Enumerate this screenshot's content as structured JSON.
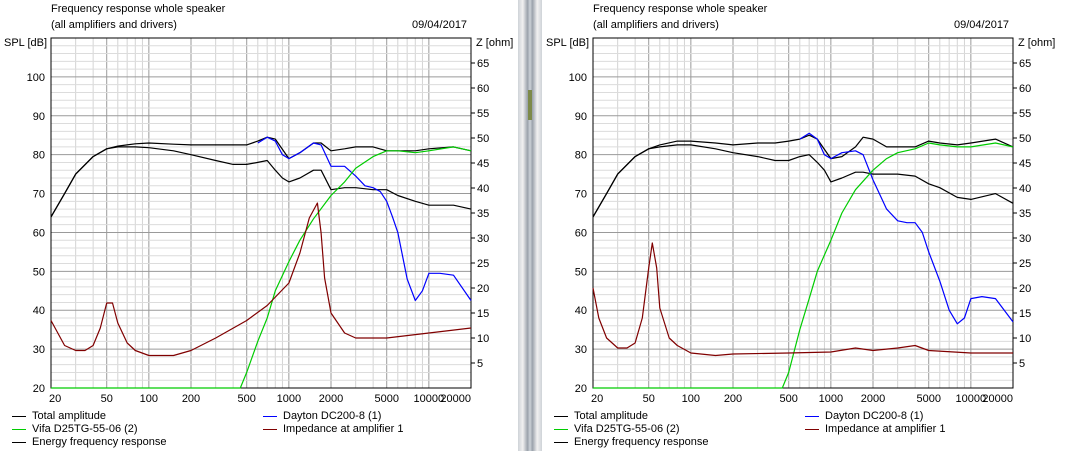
{
  "header": {
    "title": "Frequency response whole speaker",
    "subtitle": "(all amplifiers and drivers)",
    "date": "09/04/2017",
    "y_left_label": "SPL [dB]",
    "y_right_label": "Z [ohm]"
  },
  "legend": [
    {
      "label": "Total amplitude",
      "color": "#000000"
    },
    {
      "label": "Vifa D25TG-55-06 (2)",
      "color": "#00cc00"
    },
    {
      "label": "Energy frequency response",
      "color": "#000000"
    },
    {
      "label": "Dayton DC200-8 (1)",
      "color": "#0000ff"
    },
    {
      "label": "Impedance at amplifier 1",
      "color": "#800000"
    }
  ],
  "chart_data": [
    {
      "type": "line",
      "title": "Frequency response whole speaker",
      "subtitle": "(all amplifiers and drivers)",
      "xlabel": "",
      "ylabel": "SPL [dB]",
      "y2label": "Z [ohm]",
      "x_scale": "log",
      "xlim": [
        20,
        20000
      ],
      "ylim": [
        20,
        110
      ],
      "y2lim": [
        0,
        70
      ],
      "x_ticks": [
        20,
        50,
        100,
        200,
        500,
        1000,
        2000,
        5000,
        10000,
        20000
      ],
      "x_tick_labels": [
        "20",
        "50",
        "100",
        "200",
        "500",
        "1000",
        "2000",
        "5000",
        "10000",
        "20000"
      ],
      "y_ticks": [
        20,
        30,
        40,
        50,
        60,
        70,
        80,
        90,
        100
      ],
      "y2_ticks": [
        5,
        10,
        15,
        20,
        25,
        30,
        35,
        40,
        45,
        50,
        55,
        60,
        65
      ],
      "grid": true,
      "series": [
        {
          "name": "Total amplitude",
          "axis": "left",
          "color": "#000000",
          "x": [
            20,
            25,
            30,
            40,
            50,
            60,
            80,
            100,
            150,
            200,
            300,
            400,
            500,
            600,
            700,
            800,
            1000,
            1200,
            1500,
            1700,
            2000,
            2500,
            3000,
            4000,
            5000,
            6000,
            8000,
            10000,
            15000,
            20000
          ],
          "y": [
            64,
            70,
            75,
            79.5,
            81.5,
            82.2,
            82.8,
            83,
            82.7,
            82.5,
            82.5,
            82.5,
            82.5,
            83.5,
            84.5,
            84,
            79,
            80.5,
            83,
            83,
            81,
            81.5,
            82,
            82,
            81,
            81,
            81,
            81.5,
            82,
            81
          ]
        },
        {
          "name": "Energy frequency response",
          "axis": "left",
          "color": "#000000",
          "x": [
            20,
            25,
            30,
            40,
            50,
            60,
            80,
            100,
            150,
            200,
            300,
            400,
            500,
            600,
            700,
            800,
            900,
            1000,
            1200,
            1500,
            1700,
            2000,
            2500,
            3000,
            4000,
            5000,
            6000,
            8000,
            10000,
            15000,
            20000
          ],
          "y": [
            64,
            70,
            75,
            79.5,
            81.5,
            82,
            82,
            81.8,
            81,
            80,
            78.5,
            77.5,
            77.5,
            78,
            78.5,
            76,
            74,
            73,
            74,
            76,
            76,
            71,
            71.5,
            71.5,
            71,
            71,
            69.5,
            68,
            67,
            67,
            66
          ]
        },
        {
          "name": "Dayton DC200-8 (1)",
          "axis": "left",
          "color": "#0000ff",
          "x": [
            600,
            700,
            800,
            900,
            1000,
            1200,
            1500,
            1700,
            2000,
            2500,
            3000,
            3500,
            4000,
            4500,
            5000,
            5500,
            6000,
            7000,
            8000,
            9000,
            10000,
            12000,
            15000,
            20000
          ],
          "y": [
            83,
            84.5,
            83.5,
            80,
            79,
            80.5,
            83,
            82.5,
            77,
            77,
            74.5,
            72,
            71.5,
            70.5,
            68,
            64,
            60,
            48,
            42.5,
            45,
            49.5,
            49.5,
            49,
            42.5
          ]
        },
        {
          "name": "Vifa D25TG-55-06 (2)",
          "axis": "left",
          "color": "#00cc00",
          "x": [
            20,
            100,
            300,
            450,
            500,
            600,
            700,
            800,
            1000,
            1200,
            1500,
            2000,
            2500,
            3000,
            4000,
            5000,
            6000,
            8000,
            10000,
            15000,
            20000
          ],
          "y": [
            20,
            20,
            20,
            20,
            24,
            32,
            38,
            45,
            52.5,
            58,
            63.5,
            69.5,
            73,
            76.5,
            79.5,
            81,
            81,
            80.5,
            81,
            82,
            81
          ]
        },
        {
          "name": "Impedance at amplifier 1",
          "axis": "right",
          "color": "#800000",
          "x": [
            20,
            25,
            30,
            35,
            40,
            45,
            50,
            55,
            60,
            70,
            80,
            100,
            150,
            200,
            300,
            500,
            700,
            1000,
            1200,
            1400,
            1600,
            1700,
            1800,
            2000,
            2500,
            3000,
            5000,
            10000,
            20000
          ],
          "y": [
            13.5,
            8.5,
            7.5,
            7.5,
            8.5,
            12,
            17,
            17,
            13,
            9,
            7.5,
            6.5,
            6.5,
            7.5,
            10,
            13.5,
            16.5,
            21,
            27,
            34,
            37,
            31,
            22,
            15,
            11,
            10,
            10,
            11,
            12
          ]
        }
      ]
    },
    {
      "type": "line",
      "title": "Frequency response whole speaker",
      "subtitle": "(all amplifiers and drivers)",
      "xlabel": "",
      "ylabel": "SPL [dB]",
      "y2label": "Z [ohm]",
      "x_scale": "log",
      "xlim": [
        20,
        20000
      ],
      "ylim": [
        20,
        110
      ],
      "y2lim": [
        0,
        70
      ],
      "x_ticks": [
        20,
        50,
        100,
        200,
        500,
        1000,
        2000,
        5000,
        10000,
        20000
      ],
      "x_tick_labels": [
        "20",
        "50",
        "100",
        "200",
        "500",
        "1000",
        "2000",
        "5000",
        "10000",
        "20000"
      ],
      "y_ticks": [
        20,
        30,
        40,
        50,
        60,
        70,
        80,
        90,
        100
      ],
      "y2_ticks": [
        5,
        10,
        15,
        20,
        25,
        30,
        35,
        40,
        45,
        50,
        55,
        60,
        65
      ],
      "grid": true,
      "series": [
        {
          "name": "Total amplitude",
          "axis": "left",
          "color": "#000000",
          "x": [
            20,
            25,
            30,
            40,
            50,
            60,
            80,
            100,
            150,
            200,
            300,
            400,
            500,
            600,
            700,
            800,
            1000,
            1200,
            1500,
            1700,
            2000,
            2500,
            3000,
            4000,
            5000,
            6000,
            8000,
            10000,
            15000,
            20000
          ],
          "y": [
            64,
            70,
            75,
            79.5,
            81.5,
            82.5,
            83.5,
            83.5,
            83,
            82.5,
            83,
            83,
            83.5,
            84,
            85,
            84,
            79,
            79.5,
            82,
            84.5,
            84,
            82,
            82,
            82,
            83.5,
            83,
            82.5,
            83,
            84,
            82
          ]
        },
        {
          "name": "Energy frequency response",
          "axis": "left",
          "color": "#000000",
          "x": [
            20,
            25,
            30,
            40,
            50,
            60,
            80,
            100,
            150,
            200,
            300,
            400,
            500,
            600,
            700,
            800,
            900,
            1000,
            1200,
            1500,
            1700,
            2000,
            2500,
            3000,
            4000,
            5000,
            6000,
            8000,
            10000,
            15000,
            20000
          ],
          "y": [
            64,
            70,
            75,
            79.5,
            81.5,
            82,
            82.5,
            82.5,
            81.5,
            80.5,
            79.5,
            78.5,
            78.5,
            79.5,
            80,
            78,
            76,
            73,
            74,
            75.5,
            75.5,
            75,
            75,
            75,
            74.5,
            72.5,
            71.5,
            69,
            68.5,
            70,
            67.5
          ]
        },
        {
          "name": "Dayton DC200-8 (1)",
          "axis": "left",
          "color": "#0000ff",
          "x": [
            600,
            700,
            800,
            900,
            1000,
            1200,
            1500,
            1700,
            2000,
            2500,
            3000,
            3500,
            4000,
            4500,
            5000,
            6000,
            7000,
            8000,
            9000,
            10000,
            12000,
            15000,
            20000
          ],
          "y": [
            84,
            85.5,
            84,
            80,
            79,
            80.5,
            81,
            80,
            73.5,
            66,
            63,
            62.5,
            62.5,
            60,
            55,
            47.5,
            40,
            36.5,
            38,
            43,
            43.5,
            43,
            37
          ]
        },
        {
          "name": "Vifa D25TG-55-06 (2)",
          "axis": "left",
          "color": "#00cc00",
          "x": [
            20,
            100,
            300,
            450,
            500,
            600,
            700,
            800,
            1000,
            1200,
            1500,
            2000,
            2500,
            3000,
            4000,
            5000,
            6000,
            8000,
            10000,
            15000,
            20000
          ],
          "y": [
            20,
            20,
            20,
            20,
            24,
            35,
            43,
            50,
            58,
            65,
            71,
            76,
            79,
            80.5,
            81.5,
            83,
            82.5,
            82,
            82,
            83,
            82
          ]
        },
        {
          "name": "Impedance at amplifier 1",
          "axis": "right",
          "color": "#800000",
          "x": [
            20,
            22,
            25,
            30,
            35,
            40,
            45,
            50,
            53,
            57,
            60,
            70,
            80,
            100,
            150,
            200,
            500,
            1000,
            1500,
            2000,
            3000,
            4000,
            5000,
            10000,
            20000
          ],
          "y": [
            20,
            14,
            10,
            8,
            8,
            9,
            14,
            24,
            29,
            24,
            16,
            10,
            8.5,
            7,
            6.5,
            6.8,
            7,
            7.2,
            8,
            7.5,
            8,
            8.5,
            7.5,
            7,
            7
          ]
        }
      ]
    }
  ]
}
